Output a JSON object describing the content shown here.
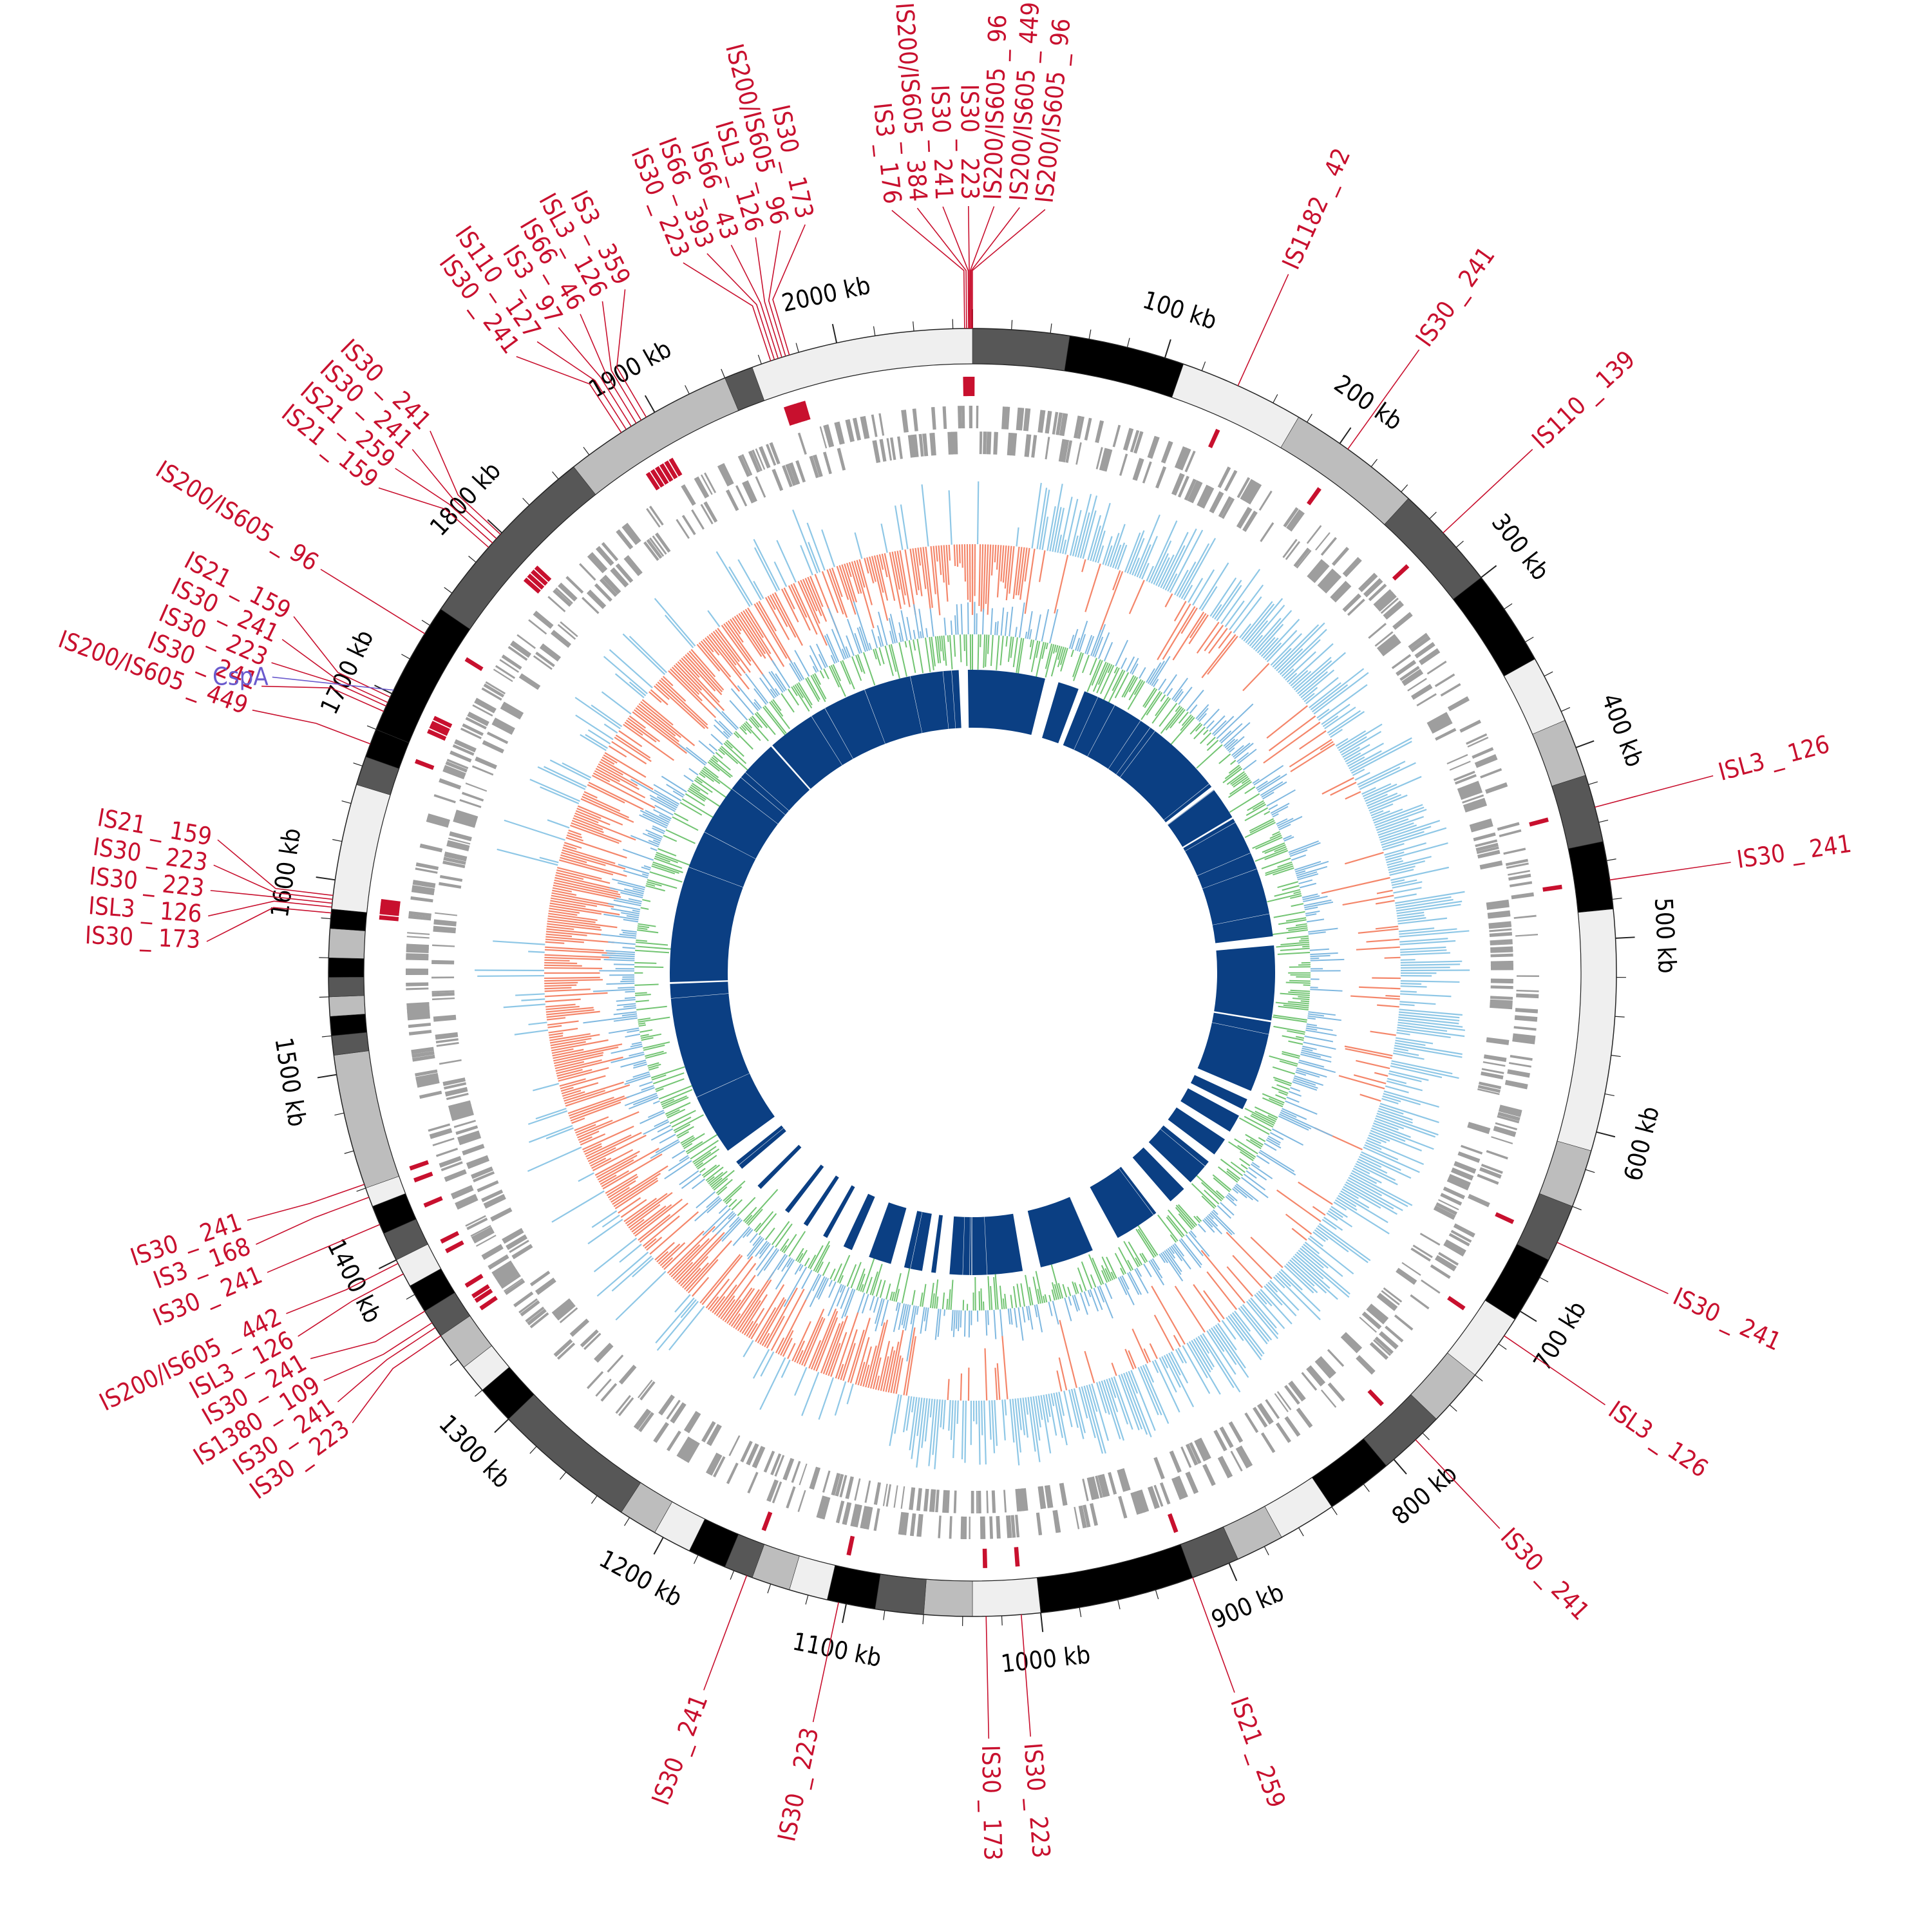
{
  "genome": {
    "length_kb": 2070,
    "start_label_kb": 0
  },
  "colors": {
    "background": "#ffffff",
    "is_red": "#c8102e",
    "gene_blue_label": "#6a5acd",
    "contig_black": "#000000",
    "contig_dark": "#575757",
    "contig_mid": "#bdbdbd",
    "contig_light": "#efefef",
    "gene_gray": "#9e9e9e",
    "gc_skew_positive": "#8ec7e6",
    "gc_skew_negative": "#f4866a",
    "gc_content_green": "#72c472",
    "gc_content_blue": "#7fb8e0",
    "core_blue": "#0b3f83",
    "core_blue_alt": "#1663aa"
  },
  "kb_ticks": [
    {
      "kb": 100,
      "label": "100 kb"
    },
    {
      "kb": 200,
      "label": "200 kb"
    },
    {
      "kb": 300,
      "label": "300 kb"
    },
    {
      "kb": 400,
      "label": "400 kb"
    },
    {
      "kb": 500,
      "label": "500 kb"
    },
    {
      "kb": 600,
      "label": "600 kb"
    },
    {
      "kb": 700,
      "label": "700 kb"
    },
    {
      "kb": 800,
      "label": "800 kb"
    },
    {
      "kb": 900,
      "label": "900 kb"
    },
    {
      "kb": 1000,
      "label": "1000 kb"
    },
    {
      "kb": 1100,
      "label": "1100 kb"
    },
    {
      "kb": 1200,
      "label": "1200 kb"
    },
    {
      "kb": 1300,
      "label": "1300 kb"
    },
    {
      "kb": 1400,
      "label": "1400 kb"
    },
    {
      "kb": 1500,
      "label": "1500 kb"
    },
    {
      "kb": 1600,
      "label": "1600 kb"
    },
    {
      "kb": 1700,
      "label": "1700 kb"
    },
    {
      "kb": 1800,
      "label": "1800 kb"
    },
    {
      "kb": 1900,
      "label": "1900 kb"
    },
    {
      "kb": 2000,
      "label": "2000 kb"
    }
  ],
  "contigs": [
    {
      "start": 0,
      "end": 50,
      "shade": "dark"
    },
    {
      "start": 50,
      "end": 110,
      "shade": "black"
    },
    {
      "start": 110,
      "end": 175,
      "shade": "light"
    },
    {
      "start": 175,
      "end": 245,
      "shade": "mid"
    },
    {
      "start": 245,
      "end": 300,
      "shade": "dark"
    },
    {
      "start": 300,
      "end": 350,
      "shade": "black"
    },
    {
      "start": 350,
      "end": 385,
      "shade": "light"
    },
    {
      "start": 385,
      "end": 415,
      "shade": "mid"
    },
    {
      "start": 415,
      "end": 450,
      "shade": "dark"
    },
    {
      "start": 450,
      "end": 485,
      "shade": "black"
    },
    {
      "start": 485,
      "end": 610,
      "shade": "light"
    },
    {
      "start": 610,
      "end": 640,
      "shade": "mid"
    },
    {
      "start": 640,
      "end": 670,
      "shade": "dark"
    },
    {
      "start": 670,
      "end": 705,
      "shade": "black"
    },
    {
      "start": 705,
      "end": 740,
      "shade": "light"
    },
    {
      "start": 740,
      "end": 770,
      "shade": "mid"
    },
    {
      "start": 770,
      "end": 805,
      "shade": "dark"
    },
    {
      "start": 805,
      "end": 840,
      "shade": "black"
    },
    {
      "start": 840,
      "end": 870,
      "shade": "light"
    },
    {
      "start": 870,
      "end": 895,
      "shade": "mid"
    },
    {
      "start": 895,
      "end": 920,
      "shade": "dark"
    },
    {
      "start": 920,
      "end": 1000,
      "shade": "black"
    },
    {
      "start": 1000,
      "end": 1035,
      "shade": "light"
    },
    {
      "start": 1035,
      "end": 1060,
      "shade": "mid"
    },
    {
      "start": 1060,
      "end": 1085,
      "shade": "dark"
    },
    {
      "start": 1085,
      "end": 1110,
      "shade": "black"
    },
    {
      "start": 1110,
      "end": 1130,
      "shade": "light"
    },
    {
      "start": 1130,
      "end": 1150,
      "shade": "mid"
    },
    {
      "start": 1150,
      "end": 1165,
      "shade": "dark"
    },
    {
      "start": 1165,
      "end": 1185,
      "shade": "black"
    },
    {
      "start": 1185,
      "end": 1205,
      "shade": "light"
    },
    {
      "start": 1205,
      "end": 1225,
      "shade": "mid"
    },
    {
      "start": 1225,
      "end": 1300,
      "shade": "dark"
    },
    {
      "start": 1300,
      "end": 1320,
      "shade": "black"
    },
    {
      "start": 1320,
      "end": 1335,
      "shade": "light"
    },
    {
      "start": 1335,
      "end": 1355,
      "shade": "mid"
    },
    {
      "start": 1355,
      "end": 1370,
      "shade": "dark"
    },
    {
      "start": 1370,
      "end": 1385,
      "shade": "black"
    },
    {
      "start": 1385,
      "end": 1400,
      "shade": "light"
    },
    {
      "start": 1400,
      "end": 1415,
      "shade": "dark"
    },
    {
      "start": 1415,
      "end": 1430,
      "shade": "black"
    },
    {
      "start": 1430,
      "end": 1440,
      "shade": "light"
    },
    {
      "start": 1440,
      "end": 1510,
      "shade": "mid"
    },
    {
      "start": 1510,
      "end": 1520,
      "shade": "dark"
    },
    {
      "start": 1520,
      "end": 1530,
      "shade": "black"
    },
    {
      "start": 1530,
      "end": 1540,
      "shade": "mid"
    },
    {
      "start": 1540,
      "end": 1550,
      "shade": "dark"
    },
    {
      "start": 1550,
      "end": 1560,
      "shade": "black"
    },
    {
      "start": 1560,
      "end": 1575,
      "shade": "mid"
    },
    {
      "start": 1575,
      "end": 1585,
      "shade": "black"
    },
    {
      "start": 1585,
      "end": 1650,
      "shade": "light"
    },
    {
      "start": 1650,
      "end": 1665,
      "shade": "dark"
    },
    {
      "start": 1665,
      "end": 1680,
      "shade": "black"
    },
    {
      "start": 1680,
      "end": 1750,
      "shade": "black"
    },
    {
      "start": 1750,
      "end": 1850,
      "shade": "dark"
    },
    {
      "start": 1850,
      "end": 1940,
      "shade": "mid"
    },
    {
      "start": 1940,
      "end": 1955,
      "shade": "dark"
    },
    {
      "start": 1955,
      "end": 2070,
      "shade": "light"
    }
  ],
  "is_elements": [
    {
      "name": "IS1182_42",
      "kb": 140
    },
    {
      "name": "IS30_241",
      "kb": 205
    },
    {
      "name": "IS110_139",
      "kb": 270
    },
    {
      "name": "ISL3_126",
      "kb": 432
    },
    {
      "name": "IS30_241",
      "kb": 470
    },
    {
      "name": "IS30_241",
      "kb": 660
    },
    {
      "name": "ISL3_126",
      "kb": 715
    },
    {
      "name": "IS30_241",
      "kb": 785
    },
    {
      "name": "IS21_259",
      "kb": 920
    },
    {
      "name": "IS30_223",
      "kb": 1010
    },
    {
      "name": "IS30_173",
      "kb": 1028
    },
    {
      "name": "IS30_223",
      "kb": 1104
    },
    {
      "name": "IS30_241",
      "kb": 1153
    },
    {
      "name": "IS30_223",
      "kb": 1355
    },
    {
      "name": "IS30_241",
      "kb": 1360
    },
    {
      "name": "IS1380_109",
      "kb": 1363
    },
    {
      "name": "IS30_241",
      "kb": 1370
    },
    {
      "name": "ISL3_126",
      "kb": 1392
    },
    {
      "name": "IS200/IS605_442",
      "kb": 1398
    },
    {
      "name": "IS30_241",
      "kb": 1420
    },
    {
      "name": "IS3_168",
      "kb": 1435
    },
    {
      "name": "IS30_241",
      "kb": 1442
    },
    {
      "name": "IS30_173",
      "kb": 1583
    },
    {
      "name": "ISL3_126",
      "kb": 1586
    },
    {
      "name": "IS30_223",
      "kb": 1588
    },
    {
      "name": "IS30_223",
      "kb": 1590
    },
    {
      "name": "IS21_159",
      "kb": 1592
    },
    {
      "name": "IS200/IS605_449",
      "kb": 1672
    },
    {
      "name": "IS30_241",
      "kb": 1690
    },
    {
      "name": "IS30_223",
      "kb": 1693
    },
    {
      "name": "IS30_241",
      "kb": 1695
    },
    {
      "name": "IS21_159",
      "kb": 1698
    },
    {
      "name": "IS200/IS605_96",
      "kb": 1735
    },
    {
      "name": "IS21_159",
      "kb": 1790
    },
    {
      "name": "IS21_259",
      "kb": 1793
    },
    {
      "name": "IS30_241",
      "kb": 1796
    },
    {
      "name": "IS30_241",
      "kb": 1799
    },
    {
      "name": "IS30_241",
      "kb": 1880
    },
    {
      "name": "IS110_127",
      "kb": 1883
    },
    {
      "name": "IS3_97",
      "kb": 1886
    },
    {
      "name": "IS66_46",
      "kb": 1889
    },
    {
      "name": "ISL3_126",
      "kb": 1892
    },
    {
      "name": "IS3_359",
      "kb": 1895
    },
    {
      "name": "IS30_223",
      "kb": 1965
    },
    {
      "name": "IS66_393",
      "kb": 1967
    },
    {
      "name": "IS66_43",
      "kb": 1969
    },
    {
      "name": "ISL3_126",
      "kb": 1971
    },
    {
      "name": "IS200/IS605_96",
      "kb": 1973
    },
    {
      "name": "IS30_173",
      "kb": 1975
    },
    {
      "name": "IS3_176",
      "kb": 2066
    },
    {
      "name": "IS200/IS605_384",
      "kb": 2067
    },
    {
      "name": "IS30_241",
      "kb": 2068
    },
    {
      "name": "IS30_223",
      "kb": 2068.5
    },
    {
      "name": "IS200/IS605_96",
      "kb": 2069
    },
    {
      "name": "IS200/IS605_449",
      "kb": 2069.5
    },
    {
      "name": "IS200/IS605_96",
      "kb": 2070
    }
  ],
  "gene_labels": [
    {
      "name": "CspA",
      "kb": 1702
    }
  ],
  "core_gaps": [
    {
      "start": 80,
      "end": 95
    },
    {
      "start": 118,
      "end": 125
    },
    {
      "start": 300,
      "end": 304
    },
    {
      "start": 340,
      "end": 342
    },
    {
      "start": 478,
      "end": 488
    },
    {
      "start": 570,
      "end": 572
    },
    {
      "start": 650,
      "end": 660
    },
    {
      "start": 672,
      "end": 680
    },
    {
      "start": 700,
      "end": 710
    },
    {
      "start": 730,
      "end": 740
    },
    {
      "start": 770,
      "end": 780
    },
    {
      "start": 800,
      "end": 820
    },
    {
      "start": 870,
      "end": 900
    },
    {
      "start": 960,
      "end": 980
    },
    {
      "start": 1060,
      "end": 1075
    },
    {
      "start": 1080,
      "end": 1090
    },
    {
      "start": 1110,
      "end": 1125
    },
    {
      "start": 1150,
      "end": 1170
    },
    {
      "start": 1180,
      "end": 1200
    },
    {
      "start": 1205,
      "end": 1225
    },
    {
      "start": 1230,
      "end": 1250
    },
    {
      "start": 1255,
      "end": 1290
    },
    {
      "start": 1295,
      "end": 1320
    },
    {
      "start": 1330,
      "end": 1345
    },
    {
      "start": 1540,
      "end": 1542
    },
    {
      "start": 1830,
      "end": 1832
    },
    {
      "start": 2055,
      "end": 2065
    }
  ]
}
